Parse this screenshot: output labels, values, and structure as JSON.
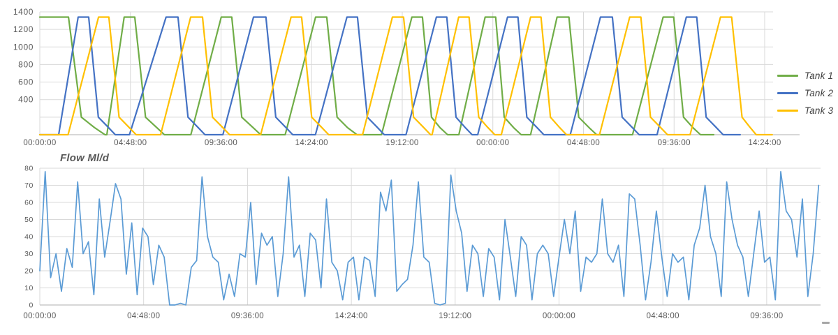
{
  "chart_data": [
    {
      "id": "tank_levels",
      "type": "line",
      "title": "",
      "xlabel": "",
      "ylabel": "",
      "ylim": [
        0,
        1400
      ],
      "grid": true,
      "legend_position": "right",
      "y_axis": {
        "tick_values": [
          1400,
          1200,
          1000,
          800,
          600,
          400
        ],
        "tick_labels": [
          "1400",
          "1200",
          "1000",
          "800",
          "600",
          "400"
        ],
        "gridline_step": 200,
        "min": 0,
        "max": 1400
      },
      "x_axis": {
        "labels": [
          "00:00:00",
          "04:48:00",
          "09:36:00",
          "14:24:00",
          "19:12:00",
          "00:00:00",
          "04:48:00",
          "09:36:00",
          "14:24:00"
        ],
        "hours_per_interval": 4.8,
        "total_hours_shown": 38.8
      },
      "series": [
        {
          "name": "Tank 1",
          "color": "#70AD47",
          "points": [
            [
              0,
              1340
            ],
            [
              1.52,
              1340
            ],
            [
              2.2,
              200
            ],
            [
              2.9,
              80
            ],
            [
              3.45,
              0
            ],
            [
              3.55,
              0
            ],
            [
              4.47,
              1340
            ],
            [
              5.03,
              1340
            ],
            [
              5.6,
              200
            ],
            [
              6.2,
              80
            ],
            [
              6.6,
              0
            ],
            [
              8.0,
              0
            ],
            [
              9.61,
              1340
            ],
            [
              10.17,
              1340
            ],
            [
              10.7,
              200
            ],
            [
              11.3,
              80
            ],
            [
              11.7,
              0
            ],
            [
              13.0,
              0
            ],
            [
              14.61,
              1340
            ],
            [
              15.2,
              1340
            ],
            [
              15.75,
              200
            ],
            [
              16.3,
              80
            ],
            [
              16.8,
              0
            ],
            [
              18.1,
              0
            ],
            [
              19.71,
              1340
            ],
            [
              20.27,
              1340
            ],
            [
              20.75,
              200
            ],
            [
              21.2,
              80
            ],
            [
              21.6,
              0
            ],
            [
              22.2,
              0
            ],
            [
              23.59,
              1340
            ],
            [
              24.15,
              1340
            ],
            [
              24.6,
              200
            ],
            [
              25.1,
              80
            ],
            [
              25.5,
              0
            ],
            [
              26.0,
              0
            ],
            [
              27.4,
              1340
            ],
            [
              28.03,
              1340
            ],
            [
              28.55,
              200
            ],
            [
              29.1,
              80
            ],
            [
              29.5,
              0
            ],
            [
              31.4,
              0
            ],
            [
              33.02,
              1340
            ],
            [
              33.58,
              1340
            ],
            [
              34.1,
              200
            ],
            [
              34.6,
              80
            ],
            [
              35.0,
              0
            ],
            [
              35.7,
              0
            ]
          ]
        },
        {
          "name": "Tank 2",
          "color": "#4472C4",
          "points": [
            [
              0,
              0
            ],
            [
              1.0,
              0
            ],
            [
              2.03,
              1340
            ],
            [
              2.59,
              1340
            ],
            [
              3.1,
              200
            ],
            [
              3.6,
              90
            ],
            [
              4.0,
              0
            ],
            [
              4.75,
              0
            ],
            [
              6.69,
              1340
            ],
            [
              7.32,
              1340
            ],
            [
              7.85,
              200
            ],
            [
              8.35,
              90
            ],
            [
              8.75,
              0
            ],
            [
              9.7,
              0
            ],
            [
              11.32,
              1340
            ],
            [
              11.98,
              1340
            ],
            [
              12.5,
              200
            ],
            [
              13.0,
              90
            ],
            [
              13.4,
              0
            ],
            [
              14.6,
              0
            ],
            [
              16.27,
              1340
            ],
            [
              16.83,
              1340
            ],
            [
              17.35,
              200
            ],
            [
              17.85,
              90
            ],
            [
              18.25,
              0
            ],
            [
              19.4,
              0
            ],
            [
              21.01,
              1340
            ],
            [
              21.56,
              1340
            ],
            [
              22.05,
              200
            ],
            [
              22.5,
              90
            ],
            [
              22.9,
              0
            ],
            [
              23.2,
              0
            ],
            [
              24.78,
              1340
            ],
            [
              25.33,
              1340
            ],
            [
              25.8,
              200
            ],
            [
              26.3,
              90
            ],
            [
              26.7,
              0
            ],
            [
              28.1,
              0
            ],
            [
              29.7,
              1340
            ],
            [
              30.33,
              1340
            ],
            [
              30.85,
              200
            ],
            [
              31.35,
              90
            ],
            [
              31.75,
              0
            ],
            [
              32.7,
              0
            ],
            [
              34.25,
              1340
            ],
            [
              34.8,
              1340
            ],
            [
              35.3,
              200
            ],
            [
              35.8,
              90
            ],
            [
              36.2,
              0
            ],
            [
              37.1,
              0
            ]
          ]
        },
        {
          "name": "Tank 3",
          "color": "#FFC000",
          "points": [
            [
              0,
              0
            ],
            [
              1.5,
              0
            ],
            [
              3.11,
              1340
            ],
            [
              3.66,
              1340
            ],
            [
              4.2,
              200
            ],
            [
              4.7,
              90
            ],
            [
              5.1,
              0
            ],
            [
              6.4,
              0
            ],
            [
              7.99,
              1340
            ],
            [
              8.62,
              1340
            ],
            [
              9.15,
              200
            ],
            [
              9.65,
              90
            ],
            [
              10.05,
              0
            ],
            [
              11.7,
              0
            ],
            [
              13.31,
              1340
            ],
            [
              13.87,
              1340
            ],
            [
              14.4,
              200
            ],
            [
              14.9,
              90
            ],
            [
              15.3,
              0
            ],
            [
              17.1,
              0
            ],
            [
              18.68,
              1340
            ],
            [
              19.27,
              1340
            ],
            [
              19.8,
              200
            ],
            [
              20.3,
              90
            ],
            [
              20.7,
              0
            ],
            [
              20.78,
              0
            ],
            [
              22.19,
              1340
            ],
            [
              22.74,
              1340
            ],
            [
              23.25,
              200
            ],
            [
              23.7,
              90
            ],
            [
              24.1,
              0
            ],
            [
              24.45,
              0
            ],
            [
              26.0,
              1340
            ],
            [
              26.55,
              1340
            ],
            [
              27.05,
              200
            ],
            [
              27.5,
              90
            ],
            [
              27.9,
              0
            ],
            [
              29.65,
              0
            ],
            [
              31.25,
              1340
            ],
            [
              31.84,
              1340
            ],
            [
              32.35,
              200
            ],
            [
              32.85,
              90
            ],
            [
              33.25,
              0
            ],
            [
              34.45,
              0
            ],
            [
              36.06,
              1340
            ],
            [
              36.65,
              1340
            ],
            [
              37.2,
              200
            ],
            [
              37.6,
              90
            ],
            [
              37.95,
              0
            ],
            [
              38.8,
              0
            ]
          ]
        }
      ],
      "legend_entries": [
        "Tank 1",
        "Tank 2",
        "Tank 3"
      ]
    },
    {
      "id": "flow",
      "type": "line",
      "title": "Flow Ml/d",
      "color": "#5B9BD5",
      "ylim": [
        0,
        80
      ],
      "grid": true,
      "y_axis": {
        "tick_values": [
          80,
          70,
          60,
          50,
          40,
          30,
          20,
          10,
          0
        ],
        "tick_labels": [
          "80",
          "70",
          "60",
          "50",
          "40",
          "30",
          "20",
          "10",
          "0"
        ],
        "min": 0,
        "max": 80
      },
      "x_axis": {
        "labels": [
          "00:00:00",
          "04:48:00",
          "09:36:00",
          "14:24:00",
          "19:12:00",
          "00:00:00",
          "04:48:00",
          "09:36:00"
        ],
        "hours_per_interval": 4.8,
        "total_hours_shown": 36
      },
      "sample_step_hours": 0.25,
      "values": [
        20,
        78,
        16,
        30,
        8,
        33,
        22,
        72,
        30,
        37,
        6,
        62,
        28,
        49,
        71,
        62,
        18,
        48,
        6,
        45,
        40,
        12,
        35,
        28,
        0,
        0,
        1,
        0,
        22,
        26,
        75,
        40,
        28,
        25,
        3,
        18,
        5,
        30,
        28,
        60,
        12,
        42,
        35,
        40,
        5,
        30,
        75,
        28,
        35,
        5,
        42,
        38,
        10,
        62,
        25,
        20,
        3,
        25,
        28,
        3,
        28,
        26,
        5,
        66,
        55,
        73,
        8,
        12,
        15,
        35,
        72,
        28,
        25,
        1,
        0,
        1,
        76,
        55,
        42,
        8,
        35,
        30,
        5,
        33,
        28,
        3,
        50,
        28,
        5,
        40,
        35,
        3,
        30,
        35,
        30,
        5,
        28,
        50,
        30,
        55,
        8,
        28,
        25,
        30,
        62,
        30,
        25,
        35,
        5,
        65,
        62,
        35,
        3,
        25,
        55,
        28,
        5,
        30,
        25,
        28,
        3,
        35,
        45,
        70,
        40,
        30,
        5,
        72,
        50,
        35,
        28,
        5,
        30,
        55,
        25,
        28,
        3,
        78,
        55,
        50,
        28,
        62,
        5,
        30,
        70
      ]
    }
  ],
  "style": {
    "gridline_color": "#d9d9d9",
    "axis_line_color": "#bfbfbf",
    "tick_label_color": "#595959",
    "legend_text_color": "#3f3f3f"
  }
}
